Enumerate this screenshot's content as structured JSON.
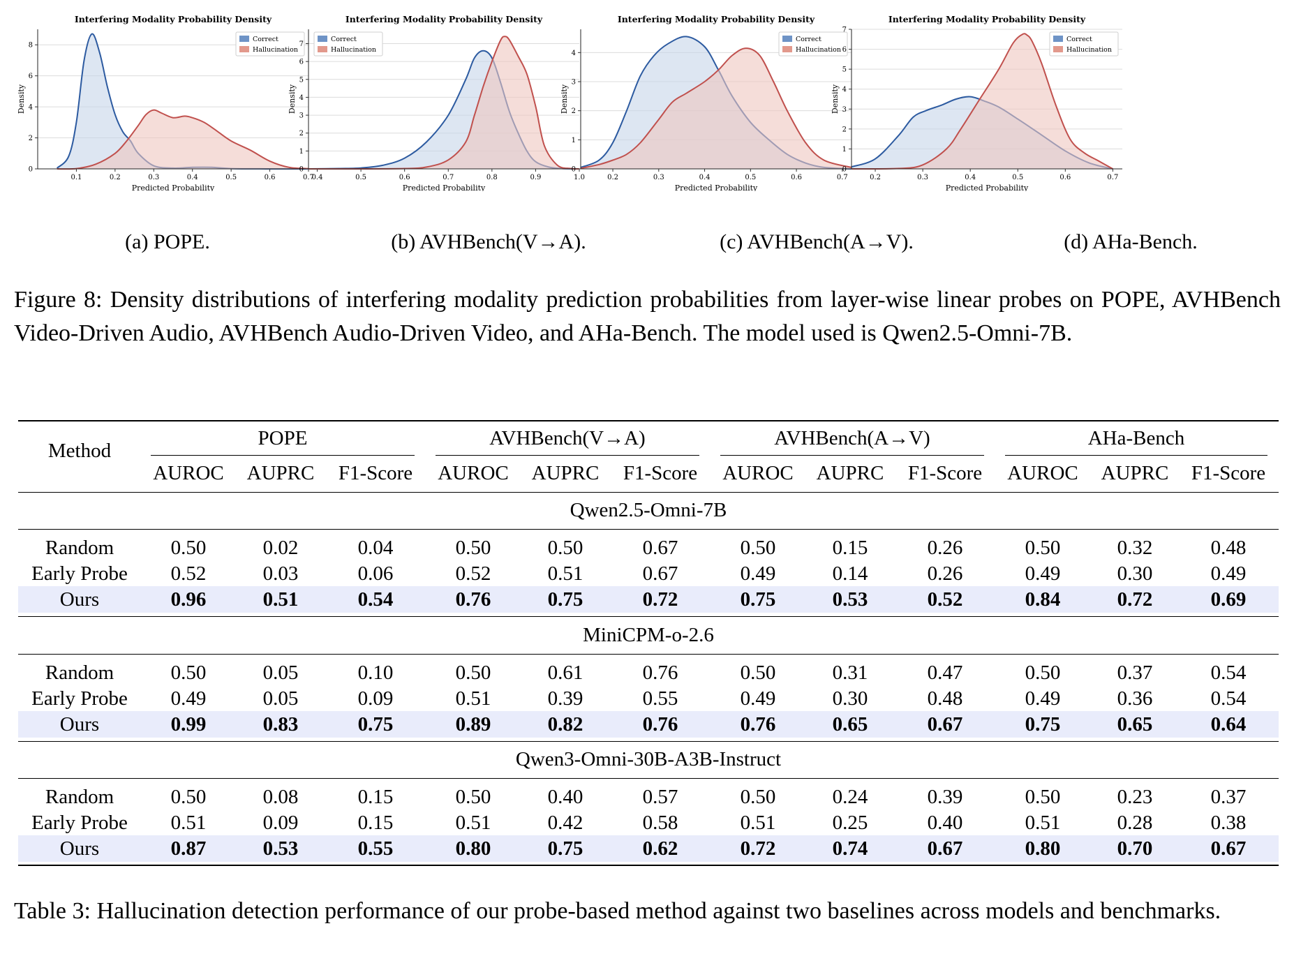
{
  "figure": {
    "panels": [
      {
        "caption": "(a) POPE."
      },
      {
        "caption": "(b) AVHBench(V→A)."
      },
      {
        "caption": "(c) AVHBench(A→V)."
      },
      {
        "caption": "(d) AHa-Bench."
      }
    ],
    "caption": "Figure 8: Density distributions of interfering modality prediction probabilities from layer-wise linear probes on POPE, AVHBench Video-Driven Audio, AVHBench Audio-Driven Video, and AHa-Bench. The model used is Qwen2.5-Omni-7B."
  },
  "chart_data": [
    {
      "type": "area",
      "title": "Interfering Modality Probability Density",
      "xlabel": "Predicted Probability",
      "ylabel": "Density",
      "xlim": [
        0.0,
        0.7
      ],
      "ylim": [
        0,
        9
      ],
      "xticks": [
        "0.1",
        "0.2",
        "0.3",
        "0.4",
        "0.5",
        "0.6",
        "0.7"
      ],
      "yticks": [
        "0",
        "2",
        "4",
        "6",
        "8"
      ],
      "grid": true,
      "legend_position": "top-right",
      "colors": {
        "Correct": "#2c5aa0",
        "Hallucination": "#c0504d",
        "CorrectFill": "#c7d6ea",
        "HallucinationFill": "#eec7c0"
      },
      "series": [
        {
          "name": "Correct",
          "x": [
            0.05,
            0.08,
            0.1,
            0.12,
            0.14,
            0.16,
            0.18,
            0.2,
            0.22,
            0.24,
            0.26,
            0.3,
            0.35,
            0.4,
            0.45,
            0.5,
            0.6,
            0.7
          ],
          "values": [
            0.05,
            0.8,
            3.0,
            7.0,
            8.7,
            7.5,
            5.3,
            3.5,
            2.4,
            1.8,
            1.0,
            0.2,
            0.05,
            0.1,
            0.1,
            0.02,
            0.0,
            0.0
          ]
        },
        {
          "name": "Hallucination",
          "x": [
            0.05,
            0.1,
            0.15,
            0.2,
            0.23,
            0.26,
            0.28,
            0.3,
            0.32,
            0.35,
            0.38,
            0.4,
            0.43,
            0.46,
            0.5,
            0.55,
            0.6,
            0.65,
            0.7
          ],
          "values": [
            0.0,
            0.02,
            0.3,
            1.0,
            1.8,
            2.8,
            3.5,
            3.8,
            3.6,
            3.3,
            3.4,
            3.3,
            3.0,
            2.5,
            1.8,
            1.2,
            0.5,
            0.1,
            0.02
          ]
        }
      ]
    },
    {
      "type": "area",
      "title": "Interfering Modality Probability Density",
      "xlabel": "Predicted Probability",
      "ylabel": "Density",
      "xlim": [
        0.38,
        1.0
      ],
      "ylim": [
        0,
        7.8
      ],
      "xticks": [
        "0.4",
        "0.5",
        "0.6",
        "0.7",
        "0.8",
        "0.9",
        "1.0"
      ],
      "yticks": [
        "0",
        "1",
        "2",
        "3",
        "4",
        "5",
        "6",
        "7"
      ],
      "grid": true,
      "legend_position": "top-left",
      "colors": {
        "Correct": "#2c5aa0",
        "Hallucination": "#c0504d",
        "CorrectFill": "#c7d6ea",
        "HallucinationFill": "#eec7c0"
      },
      "series": [
        {
          "name": "Correct",
          "x": [
            0.38,
            0.45,
            0.5,
            0.55,
            0.6,
            0.65,
            0.7,
            0.74,
            0.76,
            0.78,
            0.8,
            0.82,
            0.84,
            0.86,
            0.88,
            0.9,
            0.93,
            0.96,
            1.0
          ],
          "values": [
            0.0,
            0.02,
            0.05,
            0.2,
            0.6,
            1.5,
            3.0,
            5.0,
            6.2,
            6.6,
            6.2,
            4.8,
            3.2,
            2.0,
            1.0,
            0.4,
            0.1,
            0.02,
            0.0
          ]
        },
        {
          "name": "Hallucination",
          "x": [
            0.38,
            0.5,
            0.6,
            0.65,
            0.7,
            0.74,
            0.76,
            0.78,
            0.8,
            0.82,
            0.83,
            0.84,
            0.86,
            0.88,
            0.9,
            0.92,
            0.95,
            0.98,
            1.0
          ],
          "values": [
            0.0,
            0.0,
            0.02,
            0.1,
            0.5,
            1.5,
            3.0,
            4.6,
            6.0,
            7.2,
            7.4,
            7.2,
            6.3,
            5.3,
            3.5,
            1.3,
            0.2,
            0.02,
            0.0
          ]
        }
      ]
    },
    {
      "type": "area",
      "title": "Interfering Modality Probability Density",
      "xlabel": "Predicted Probability",
      "ylabel": "Density",
      "xlim": [
        0.13,
        0.72
      ],
      "ylim": [
        0,
        4.8
      ],
      "xticks": [
        "0.2",
        "0.3",
        "0.4",
        "0.5",
        "0.6",
        "0.7"
      ],
      "yticks": [
        "0",
        "1",
        "2",
        "3",
        "4"
      ],
      "grid": true,
      "legend_position": "top-right",
      "colors": {
        "Correct": "#2c5aa0",
        "Hallucination": "#c0504d",
        "CorrectFill": "#c7d6ea",
        "HallucinationFill": "#eec7c0"
      },
      "series": [
        {
          "name": "Correct",
          "x": [
            0.13,
            0.17,
            0.2,
            0.23,
            0.26,
            0.29,
            0.32,
            0.36,
            0.4,
            0.43,
            0.46,
            0.5,
            0.54,
            0.58,
            0.62,
            0.66,
            0.72
          ],
          "values": [
            0.05,
            0.3,
            0.9,
            2.0,
            3.2,
            3.9,
            4.3,
            4.55,
            4.2,
            3.4,
            2.5,
            1.6,
            1.0,
            0.5,
            0.2,
            0.05,
            0.0
          ]
        },
        {
          "name": "Hallucination",
          "x": [
            0.13,
            0.17,
            0.2,
            0.23,
            0.26,
            0.3,
            0.33,
            0.36,
            0.4,
            0.43,
            0.46,
            0.49,
            0.52,
            0.55,
            0.58,
            0.62,
            0.66,
            0.72
          ],
          "values": [
            0.02,
            0.15,
            0.3,
            0.5,
            0.9,
            1.7,
            2.3,
            2.6,
            3.0,
            3.4,
            3.9,
            4.15,
            3.9,
            3.0,
            2.0,
            0.9,
            0.3,
            0.05
          ]
        }
      ]
    },
    {
      "type": "area",
      "title": "Interfering Modality Probability Density",
      "xlabel": "Predicted Probability",
      "ylabel": "Density",
      "xlim": [
        0.15,
        0.72
      ],
      "ylim": [
        0,
        7
      ],
      "xticks": [
        "0.2",
        "0.3",
        "0.4",
        "0.5",
        "0.6",
        "0.7"
      ],
      "yticks": [
        "0",
        "1",
        "2",
        "3",
        "4",
        "5",
        "6",
        "7"
      ],
      "grid": true,
      "legend_position": "top-right",
      "colors": {
        "Correct": "#2c5aa0",
        "Hallucination": "#c0504d",
        "CorrectFill": "#c7d6ea",
        "HallucinationFill": "#eec7c0"
      },
      "series": [
        {
          "name": "Correct",
          "x": [
            0.15,
            0.2,
            0.25,
            0.28,
            0.31,
            0.34,
            0.37,
            0.4,
            0.43,
            0.46,
            0.5,
            0.55,
            0.6,
            0.65,
            0.7
          ],
          "values": [
            0.1,
            0.5,
            1.7,
            2.6,
            2.95,
            3.2,
            3.5,
            3.62,
            3.4,
            3.1,
            2.5,
            1.7,
            0.9,
            0.3,
            0.0
          ]
        },
        {
          "name": "Hallucination",
          "x": [
            0.15,
            0.25,
            0.3,
            0.35,
            0.38,
            0.42,
            0.46,
            0.49,
            0.51,
            0.52,
            0.53,
            0.55,
            0.58,
            0.61,
            0.64,
            0.67,
            0.7
          ],
          "values": [
            0.0,
            0.02,
            0.2,
            1.0,
            2.0,
            3.5,
            5.0,
            6.3,
            6.75,
            6.7,
            6.4,
            5.3,
            3.2,
            1.5,
            0.8,
            0.4,
            0.0
          ]
        }
      ]
    }
  ],
  "table": {
    "header": {
      "method": "Method",
      "groups": [
        "POPE",
        "AVHBench(V→A)",
        "AVHBench(A→V)",
        "AHa-Bench"
      ],
      "metrics": [
        "AUROC",
        "AUPRC",
        "F1-Score"
      ]
    },
    "sections": [
      {
        "model": "Qwen2.5-Omni-7B",
        "rows": [
          {
            "method": "Random",
            "values": [
              "0.50",
              "0.02",
              "0.04",
              "0.50",
              "0.50",
              "0.67",
              "0.50",
              "0.15",
              "0.26",
              "0.50",
              "0.32",
              "0.48"
            ]
          },
          {
            "method": "Early Probe",
            "values": [
              "0.52",
              "0.03",
              "0.06",
              "0.52",
              "0.51",
              "0.67",
              "0.49",
              "0.14",
              "0.26",
              "0.49",
              "0.30",
              "0.49"
            ]
          },
          {
            "method": "Ours",
            "values": [
              "0.96",
              "0.51",
              "0.54",
              "0.76",
              "0.75",
              "0.72",
              "0.75",
              "0.53",
              "0.52",
              "0.84",
              "0.72",
              "0.69"
            ]
          }
        ]
      },
      {
        "model": "MiniCPM-o-2.6",
        "rows": [
          {
            "method": "Random",
            "values": [
              "0.50",
              "0.05",
              "0.10",
              "0.50",
              "0.61",
              "0.76",
              "0.50",
              "0.31",
              "0.47",
              "0.50",
              "0.37",
              "0.54"
            ]
          },
          {
            "method": "Early Probe",
            "values": [
              "0.49",
              "0.05",
              "0.09",
              "0.51",
              "0.39",
              "0.55",
              "0.49",
              "0.30",
              "0.48",
              "0.49",
              "0.36",
              "0.54"
            ]
          },
          {
            "method": "Ours",
            "values": [
              "0.99",
              "0.83",
              "0.75",
              "0.89",
              "0.82",
              "0.76",
              "0.76",
              "0.65",
              "0.67",
              "0.75",
              "0.65",
              "0.64"
            ]
          }
        ]
      },
      {
        "model": "Qwen3-Omni-30B-A3B-Instruct",
        "rows": [
          {
            "method": "Random",
            "values": [
              "0.50",
              "0.08",
              "0.15",
              "0.50",
              "0.40",
              "0.57",
              "0.50",
              "0.24",
              "0.39",
              "0.50",
              "0.23",
              "0.37"
            ]
          },
          {
            "method": "Early Probe",
            "values": [
              "0.51",
              "0.09",
              "0.15",
              "0.51",
              "0.42",
              "0.58",
              "0.51",
              "0.25",
              "0.40",
              "0.51",
              "0.28",
              "0.38"
            ]
          },
          {
            "method": "Ours",
            "values": [
              "0.87",
              "0.53",
              "0.55",
              "0.80",
              "0.75",
              "0.62",
              "0.72",
              "0.74",
              "0.67",
              "0.80",
              "0.70",
              "0.67"
            ]
          }
        ]
      }
    ],
    "caption": "Table 3: Hallucination detection performance of our probe-based method against two baselines across models and benchmarks."
  }
}
